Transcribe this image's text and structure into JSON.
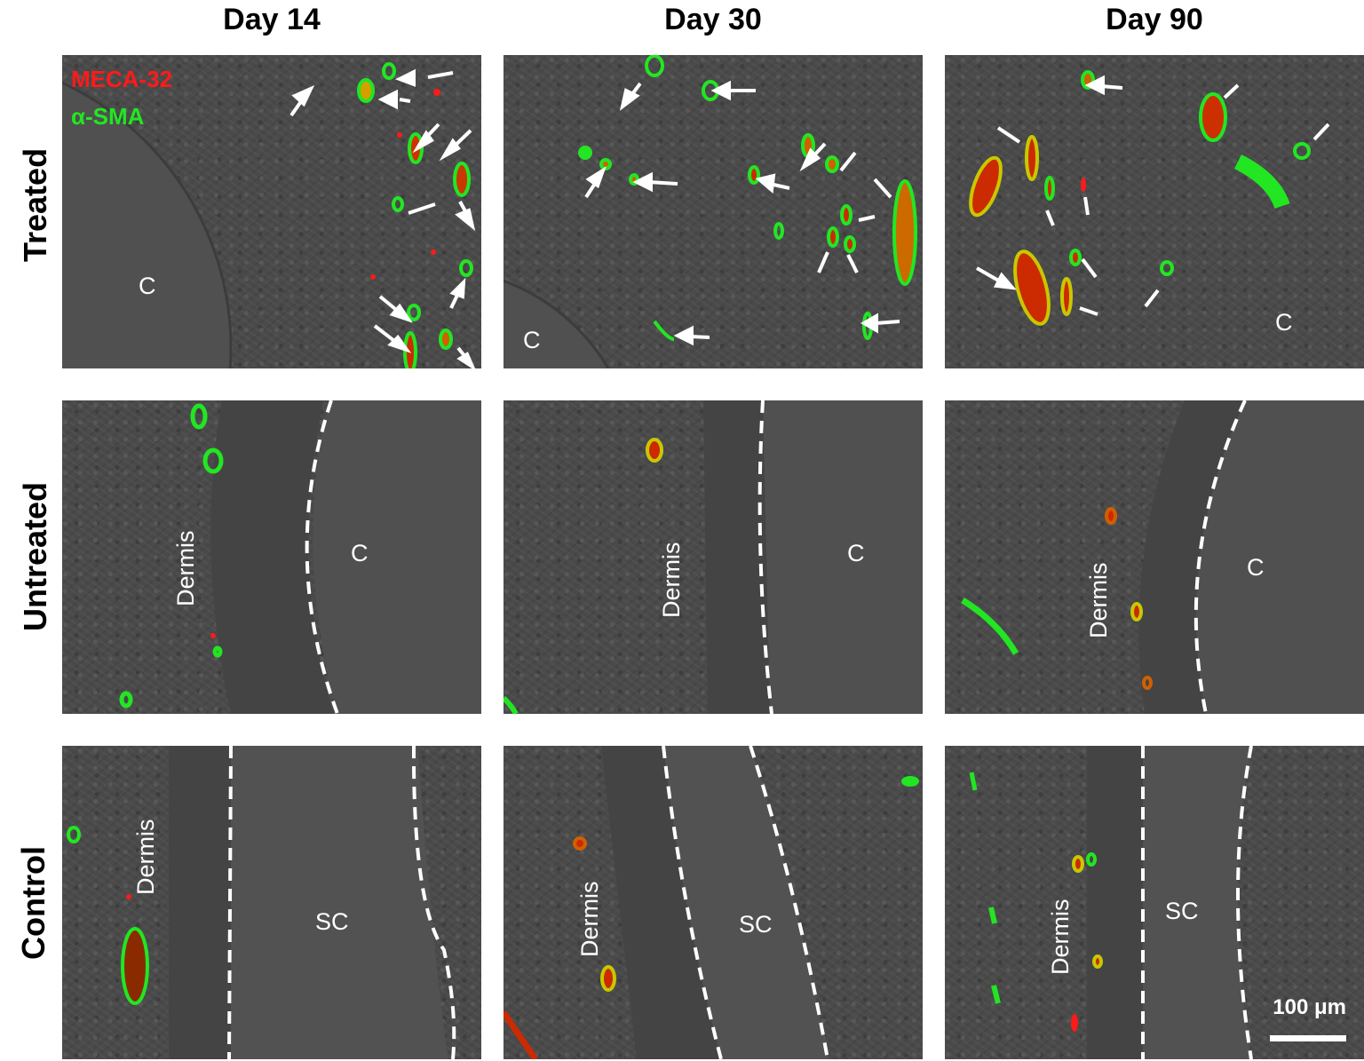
{
  "columns": [
    "Day 14",
    "Day 30",
    "Day 90"
  ],
  "rows": [
    "Treated",
    "Untreated",
    "Control"
  ],
  "legend": {
    "red": "MECA-32",
    "green": "α-SMA"
  },
  "labels": {
    "c": "C",
    "dermis": "Dermis",
    "sc": "SC"
  },
  "scale_bar": "100 μm",
  "colors": {
    "meca32": "#ff1a1a",
    "asma": "#22e622",
    "background": "#4a4a4a",
    "arrow": "#ffffff"
  }
}
